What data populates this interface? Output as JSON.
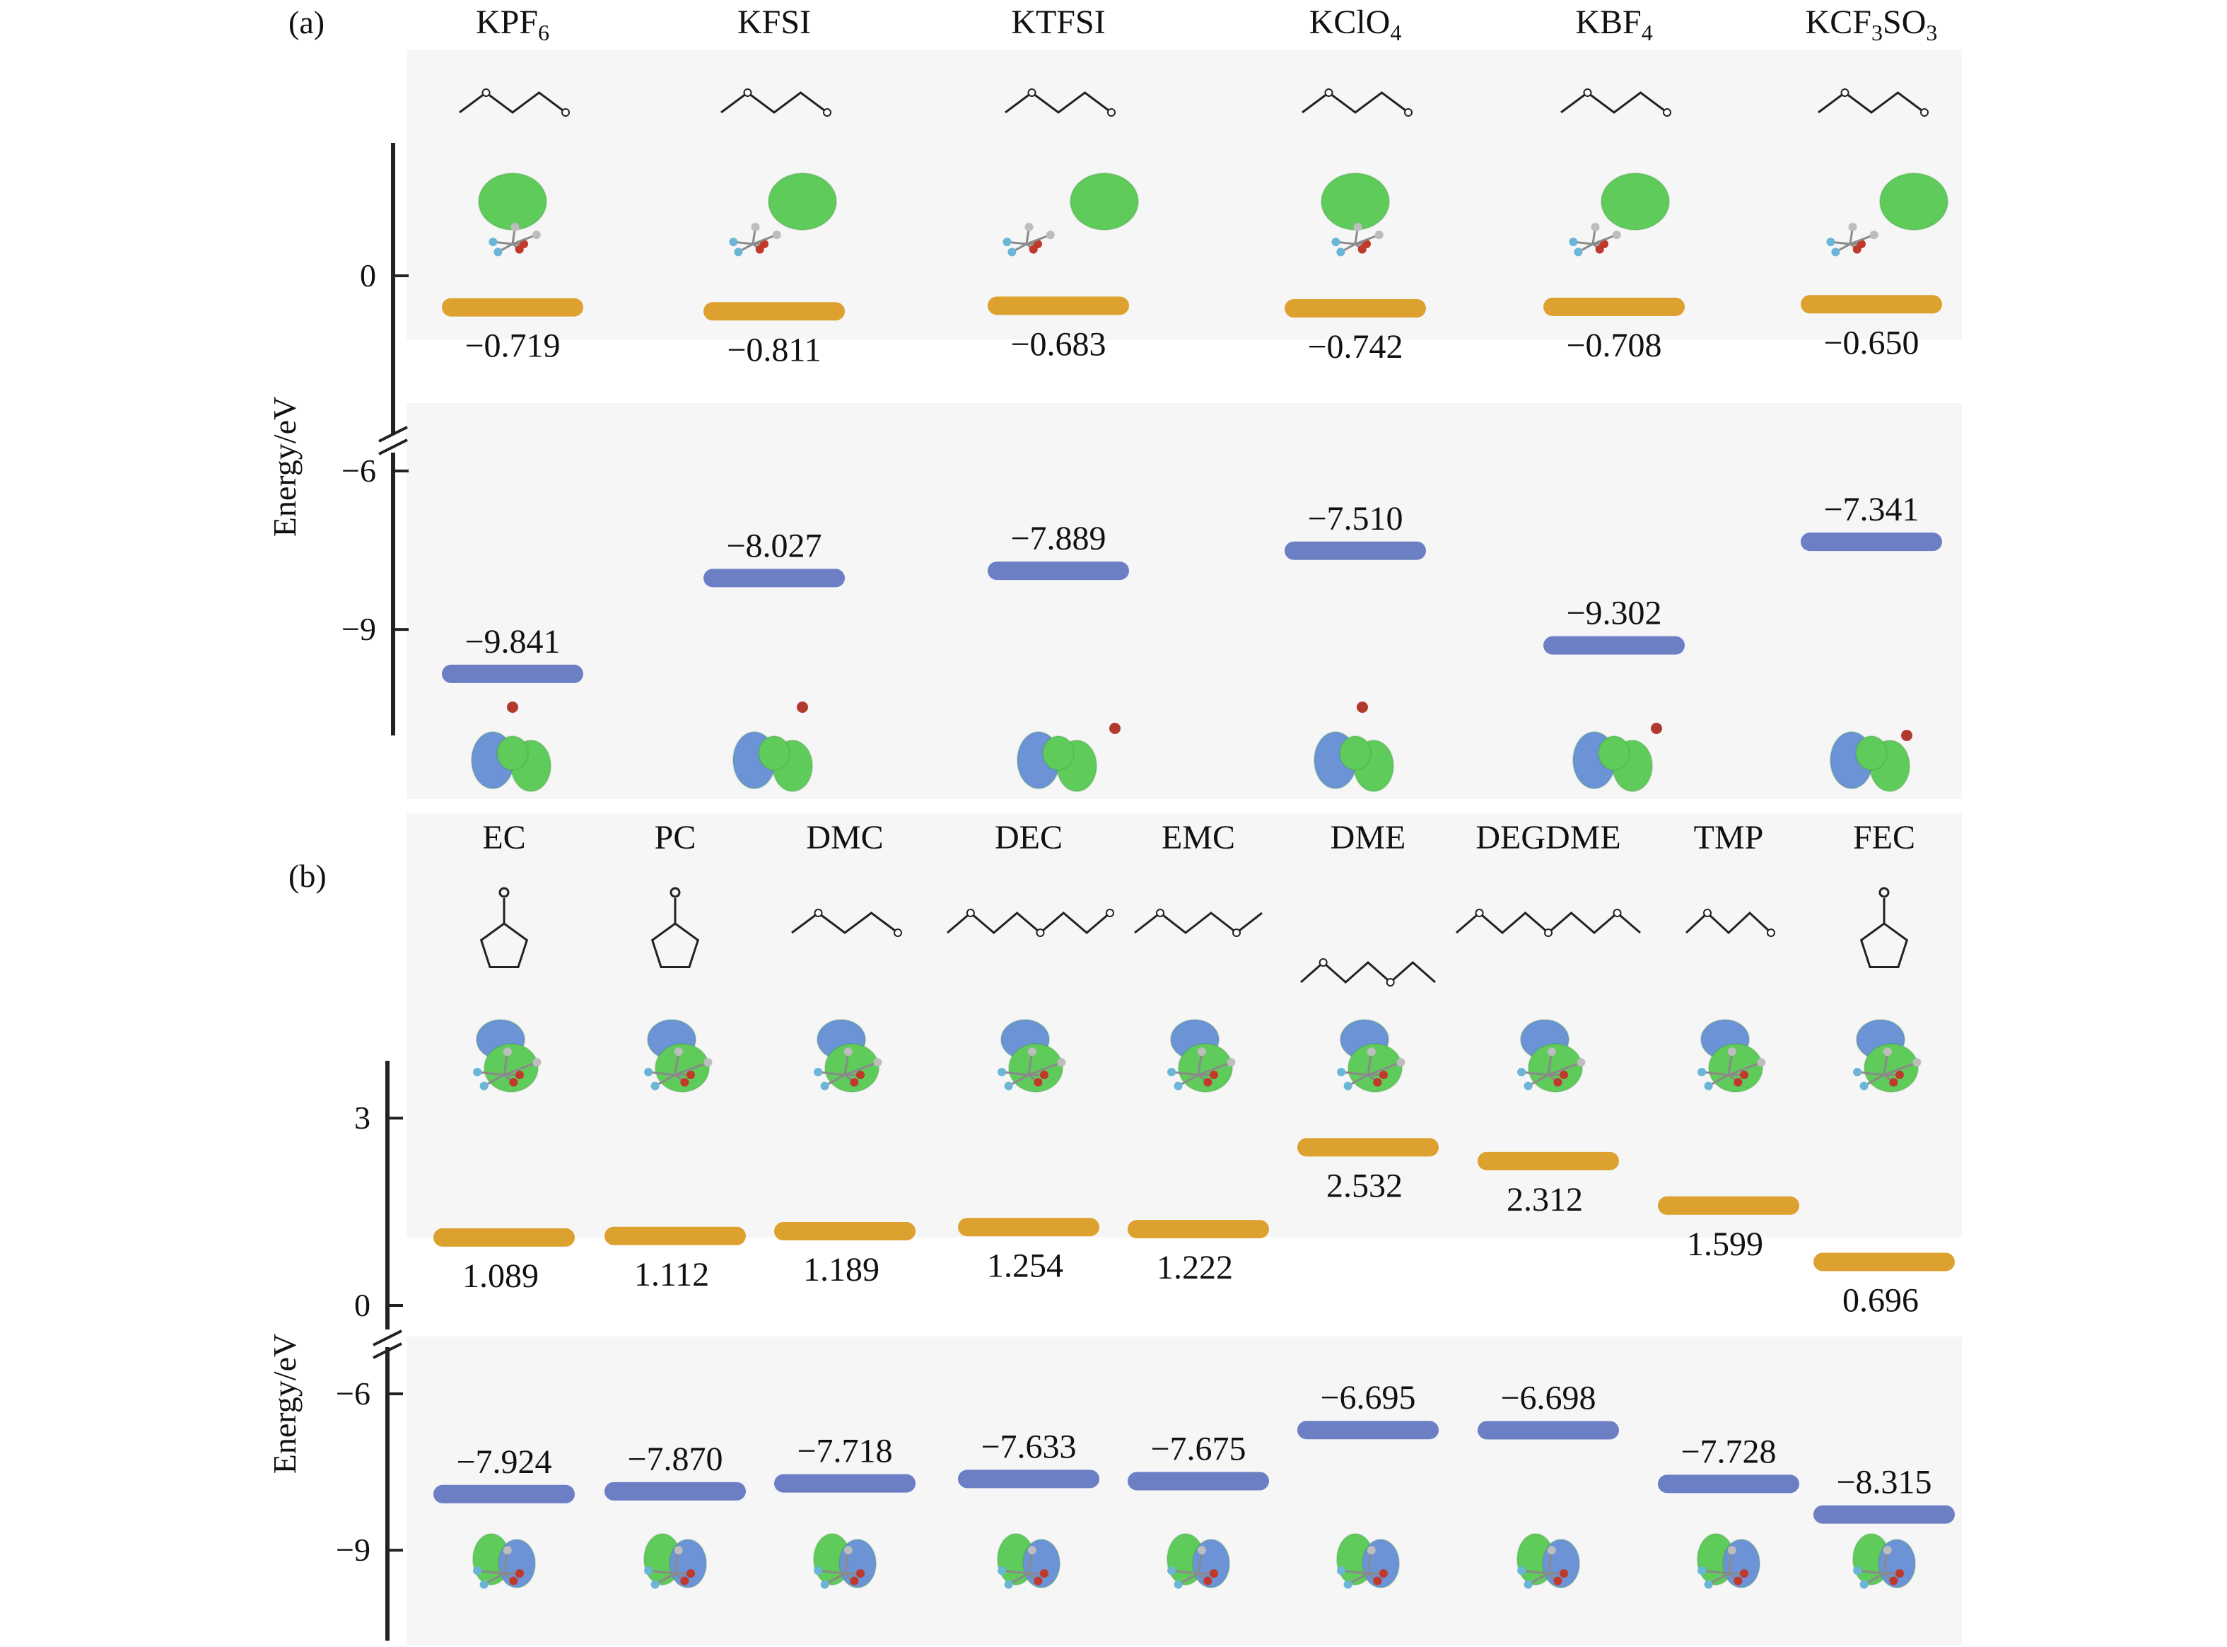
{
  "panels": [
    {
      "label": "(a)",
      "ylabel": "Energy/eV",
      "ticks": [
        {
          "label": "0",
          "value": 0
        },
        {
          "label": "−6",
          "value": -6
        },
        {
          "label": "−9",
          "value": -9
        }
      ],
      "columns": [
        {
          "name": "KPF6",
          "formula": [
            "KPF",
            "6",
            ""
          ],
          "lumo": -0.719,
          "lumo_label": "−0.719",
          "homo": -9.841,
          "homo_label": "−9.841"
        },
        {
          "name": "KFSI",
          "formula": [
            "KFSI",
            "",
            ""
          ],
          "lumo": -0.811,
          "lumo_label": "−0.811",
          "homo": -8.027,
          "homo_label": "−8.027"
        },
        {
          "name": "KTFSI",
          "formula": [
            "KTFSI",
            "",
            ""
          ],
          "lumo": -0.683,
          "lumo_label": "−0.683",
          "homo": -7.889,
          "homo_label": "−7.889"
        },
        {
          "name": "KClO4",
          "formula": [
            "KClO",
            "4",
            ""
          ],
          "lumo": -0.742,
          "lumo_label": "−0.742",
          "homo": -7.51,
          "homo_label": "−7.510"
        },
        {
          "name": "KBF4",
          "formula": [
            "KBF",
            "4",
            ""
          ],
          "lumo": -0.708,
          "lumo_label": "−0.708",
          "homo": -9.302,
          "homo_label": "−9.302"
        },
        {
          "name": "KCF3SO3",
          "formula": [
            "KCF",
            "3",
            "SO",
            "3"
          ],
          "lumo": -0.65,
          "lumo_label": "−0.650",
          "homo": -7.341,
          "homo_label": "−7.341"
        }
      ]
    },
    {
      "label": "(b)",
      "ylabel": "Energy/eV",
      "ticks": [
        {
          "label": "3",
          "value": 3
        },
        {
          "label": "0",
          "value": 0
        },
        {
          "label": "−6",
          "value": -6
        },
        {
          "label": "−9",
          "value": -9
        }
      ],
      "columns": [
        {
          "name": "EC",
          "lumo": 1.089,
          "lumo_label": "1.089",
          "homo": -7.924,
          "homo_label": "−7.924"
        },
        {
          "name": "PC",
          "lumo": 1.112,
          "lumo_label": "1.112",
          "homo": -7.87,
          "homo_label": "−7.870"
        },
        {
          "name": "DMC",
          "lumo": 1.189,
          "lumo_label": "1.189",
          "homo": -7.718,
          "homo_label": "−7.718"
        },
        {
          "name": "DEC",
          "lumo": 1.254,
          "lumo_label": "1.254",
          "homo": -7.633,
          "homo_label": "−7.633"
        },
        {
          "name": "EMC",
          "lumo": 1.222,
          "lumo_label": "1.222",
          "homo": -7.675,
          "homo_label": "−7.675"
        },
        {
          "name": "DME",
          "lumo": 2.532,
          "lumo_label": "2.532",
          "homo": -6.695,
          "homo_label": "−6.695"
        },
        {
          "name": "DEGDME",
          "lumo": 2.312,
          "lumo_label": "2.312",
          "homo": -6.698,
          "homo_label": "−6.698"
        },
        {
          "name": "TMP",
          "lumo": 1.599,
          "lumo_label": "1.599",
          "homo": -7.728,
          "homo_label": "−7.728"
        },
        {
          "name": "FEC",
          "lumo": 0.696,
          "lumo_label": "0.696",
          "homo": -8.315,
          "homo_label": "−8.315"
        }
      ]
    }
  ],
  "colors": {
    "lumo_bar": "#dca12e",
    "homo_bar": "#6c7fc4",
    "orbital_green": "#5fcb5a",
    "orbital_blue": "#6b93d6",
    "panel_bg": "#f6f6f7"
  },
  "chart_data": [
    {
      "type": "bar",
      "categories": [
        "KPF6",
        "KFSI",
        "KTFSI",
        "KClO4",
        "KBF4",
        "KCF3SO3"
      ],
      "series": [
        {
          "values": [
            -0.719,
            -0.811,
            -0.683,
            -0.742,
            -0.708,
            -0.65
          ]
        },
        {
          "values": [
            -9.841,
            -8.027,
            -7.889,
            -7.51,
            -9.302,
            -7.341
          ]
        }
      ],
      "title": "",
      "xlabel": "",
      "ylabel": "Energy/eV",
      "yticks": [
        0,
        -6,
        -9
      ],
      "axis_break": [
        -6,
        0
      ],
      "grid": false
    },
    {
      "type": "bar",
      "categories": [
        "EC",
        "PC",
        "DMC",
        "DEC",
        "EMC",
        "DME",
        "DEGDME",
        "TMP",
        "FEC"
      ],
      "series": [
        {
          "values": [
            1.089,
            1.112,
            1.189,
            1.254,
            1.222,
            2.532,
            2.312,
            1.599,
            0.696
          ]
        },
        {
          "values": [
            -7.924,
            -7.87,
            -7.718,
            -7.633,
            -7.675,
            -6.695,
            -6.698,
            -7.728,
            -8.315
          ]
        }
      ],
      "title": "",
      "xlabel": "",
      "ylabel": "Energy/eV",
      "yticks": [
        3,
        0,
        -6,
        -9
      ],
      "axis_break": [
        -6,
        0
      ],
      "grid": false
    }
  ]
}
